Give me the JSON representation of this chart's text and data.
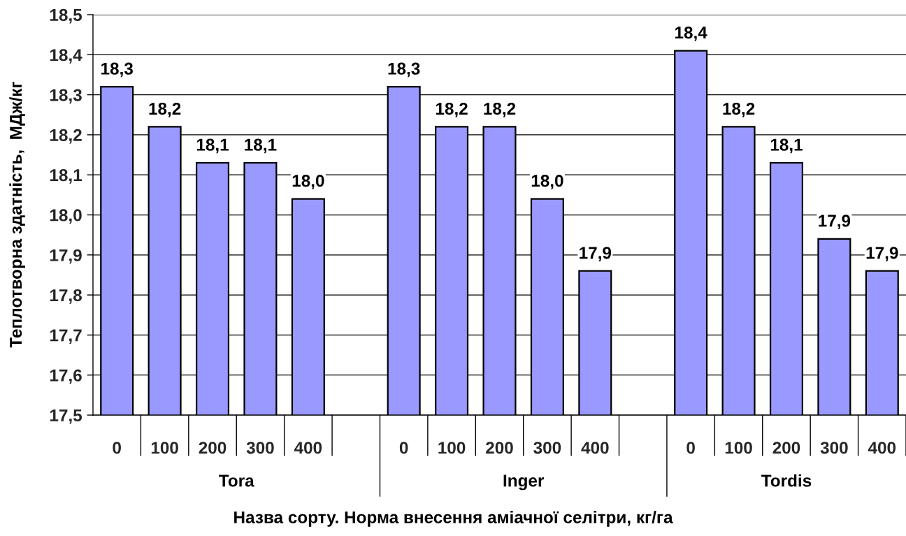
{
  "chart_data": {
    "type": "bar",
    "categories": [
      "0",
      "100",
      "200",
      "300",
      "400",
      null,
      "0",
      "100",
      "200",
      "300",
      "400",
      null,
      "0",
      "100",
      "200",
      "300",
      "400"
    ],
    "values": [
      18.32,
      18.22,
      18.13,
      18.13,
      18.04,
      null,
      18.32,
      18.22,
      18.22,
      18.04,
      17.86,
      null,
      18.41,
      18.22,
      18.13,
      17.94,
      17.86
    ],
    "value_labels": [
      "18,3",
      "18,2",
      "18,1",
      "18,1",
      "18,0",
      null,
      "18,3",
      "18,2",
      "18,2",
      "18,0",
      "17,9",
      null,
      "18,4",
      "18,2",
      "18,1",
      "17,9",
      "17,9"
    ],
    "color": "#9999ff",
    "xlabel": "Назва сорту. Норма внесення аміачної селітри, кг/га",
    "ylabel": "Теплотворна здатність,  МДж/кг",
    "annotations": [
      "Tora",
      "Inger",
      "Tordis"
    ],
    "ylim": [
      17.5,
      18.5
    ],
    "yticks": [
      {
        "value": 17.5,
        "label": "17,5"
      },
      {
        "value": 17.6,
        "label": "17,6"
      },
      {
        "value": 17.7,
        "label": "17,7"
      },
      {
        "value": 17.8,
        "label": "17,8"
      },
      {
        "value": 17.9,
        "label": "17,9"
      },
      {
        "value": 18.0,
        "label": "18,0"
      },
      {
        "value": 18.1,
        "label": "18,1"
      },
      {
        "value": 18.2,
        "label": "18,2"
      },
      {
        "value": 18.3,
        "label": "18,3"
      },
      {
        "value": 18.4,
        "label": "18,4"
      },
      {
        "value": 18.5,
        "label": "18,5"
      }
    ],
    "grid": "y"
  }
}
